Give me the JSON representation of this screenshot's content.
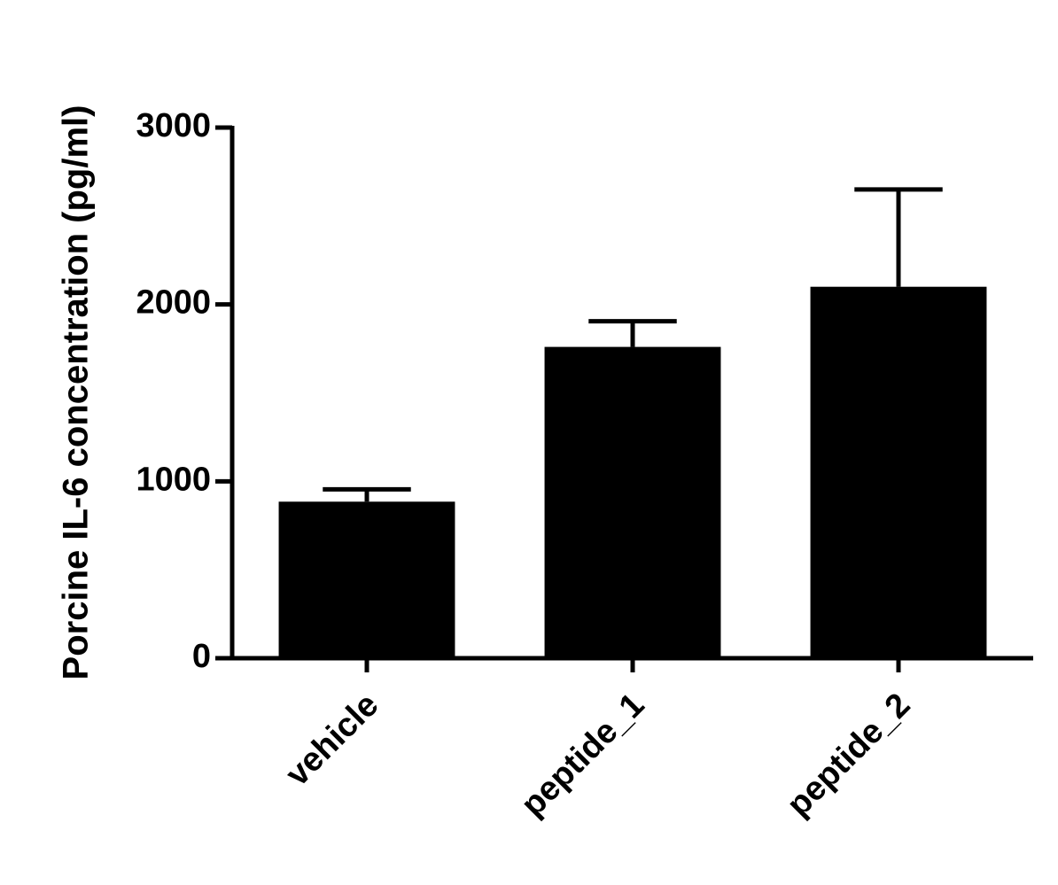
{
  "chart_data": {
    "type": "bar",
    "y_label": "Porcine IL-6 concentration (pg/ml)",
    "categories": [
      "vehicle",
      "peptide_1",
      "peptide_2"
    ],
    "values": [
      885,
      1760,
      2100
    ],
    "errors": [
      70,
      145,
      550
    ],
    "color": "#000000",
    "ylim": [
      0,
      3000
    ],
    "yticks": [
      0,
      1000,
      2000,
      3000
    ]
  }
}
